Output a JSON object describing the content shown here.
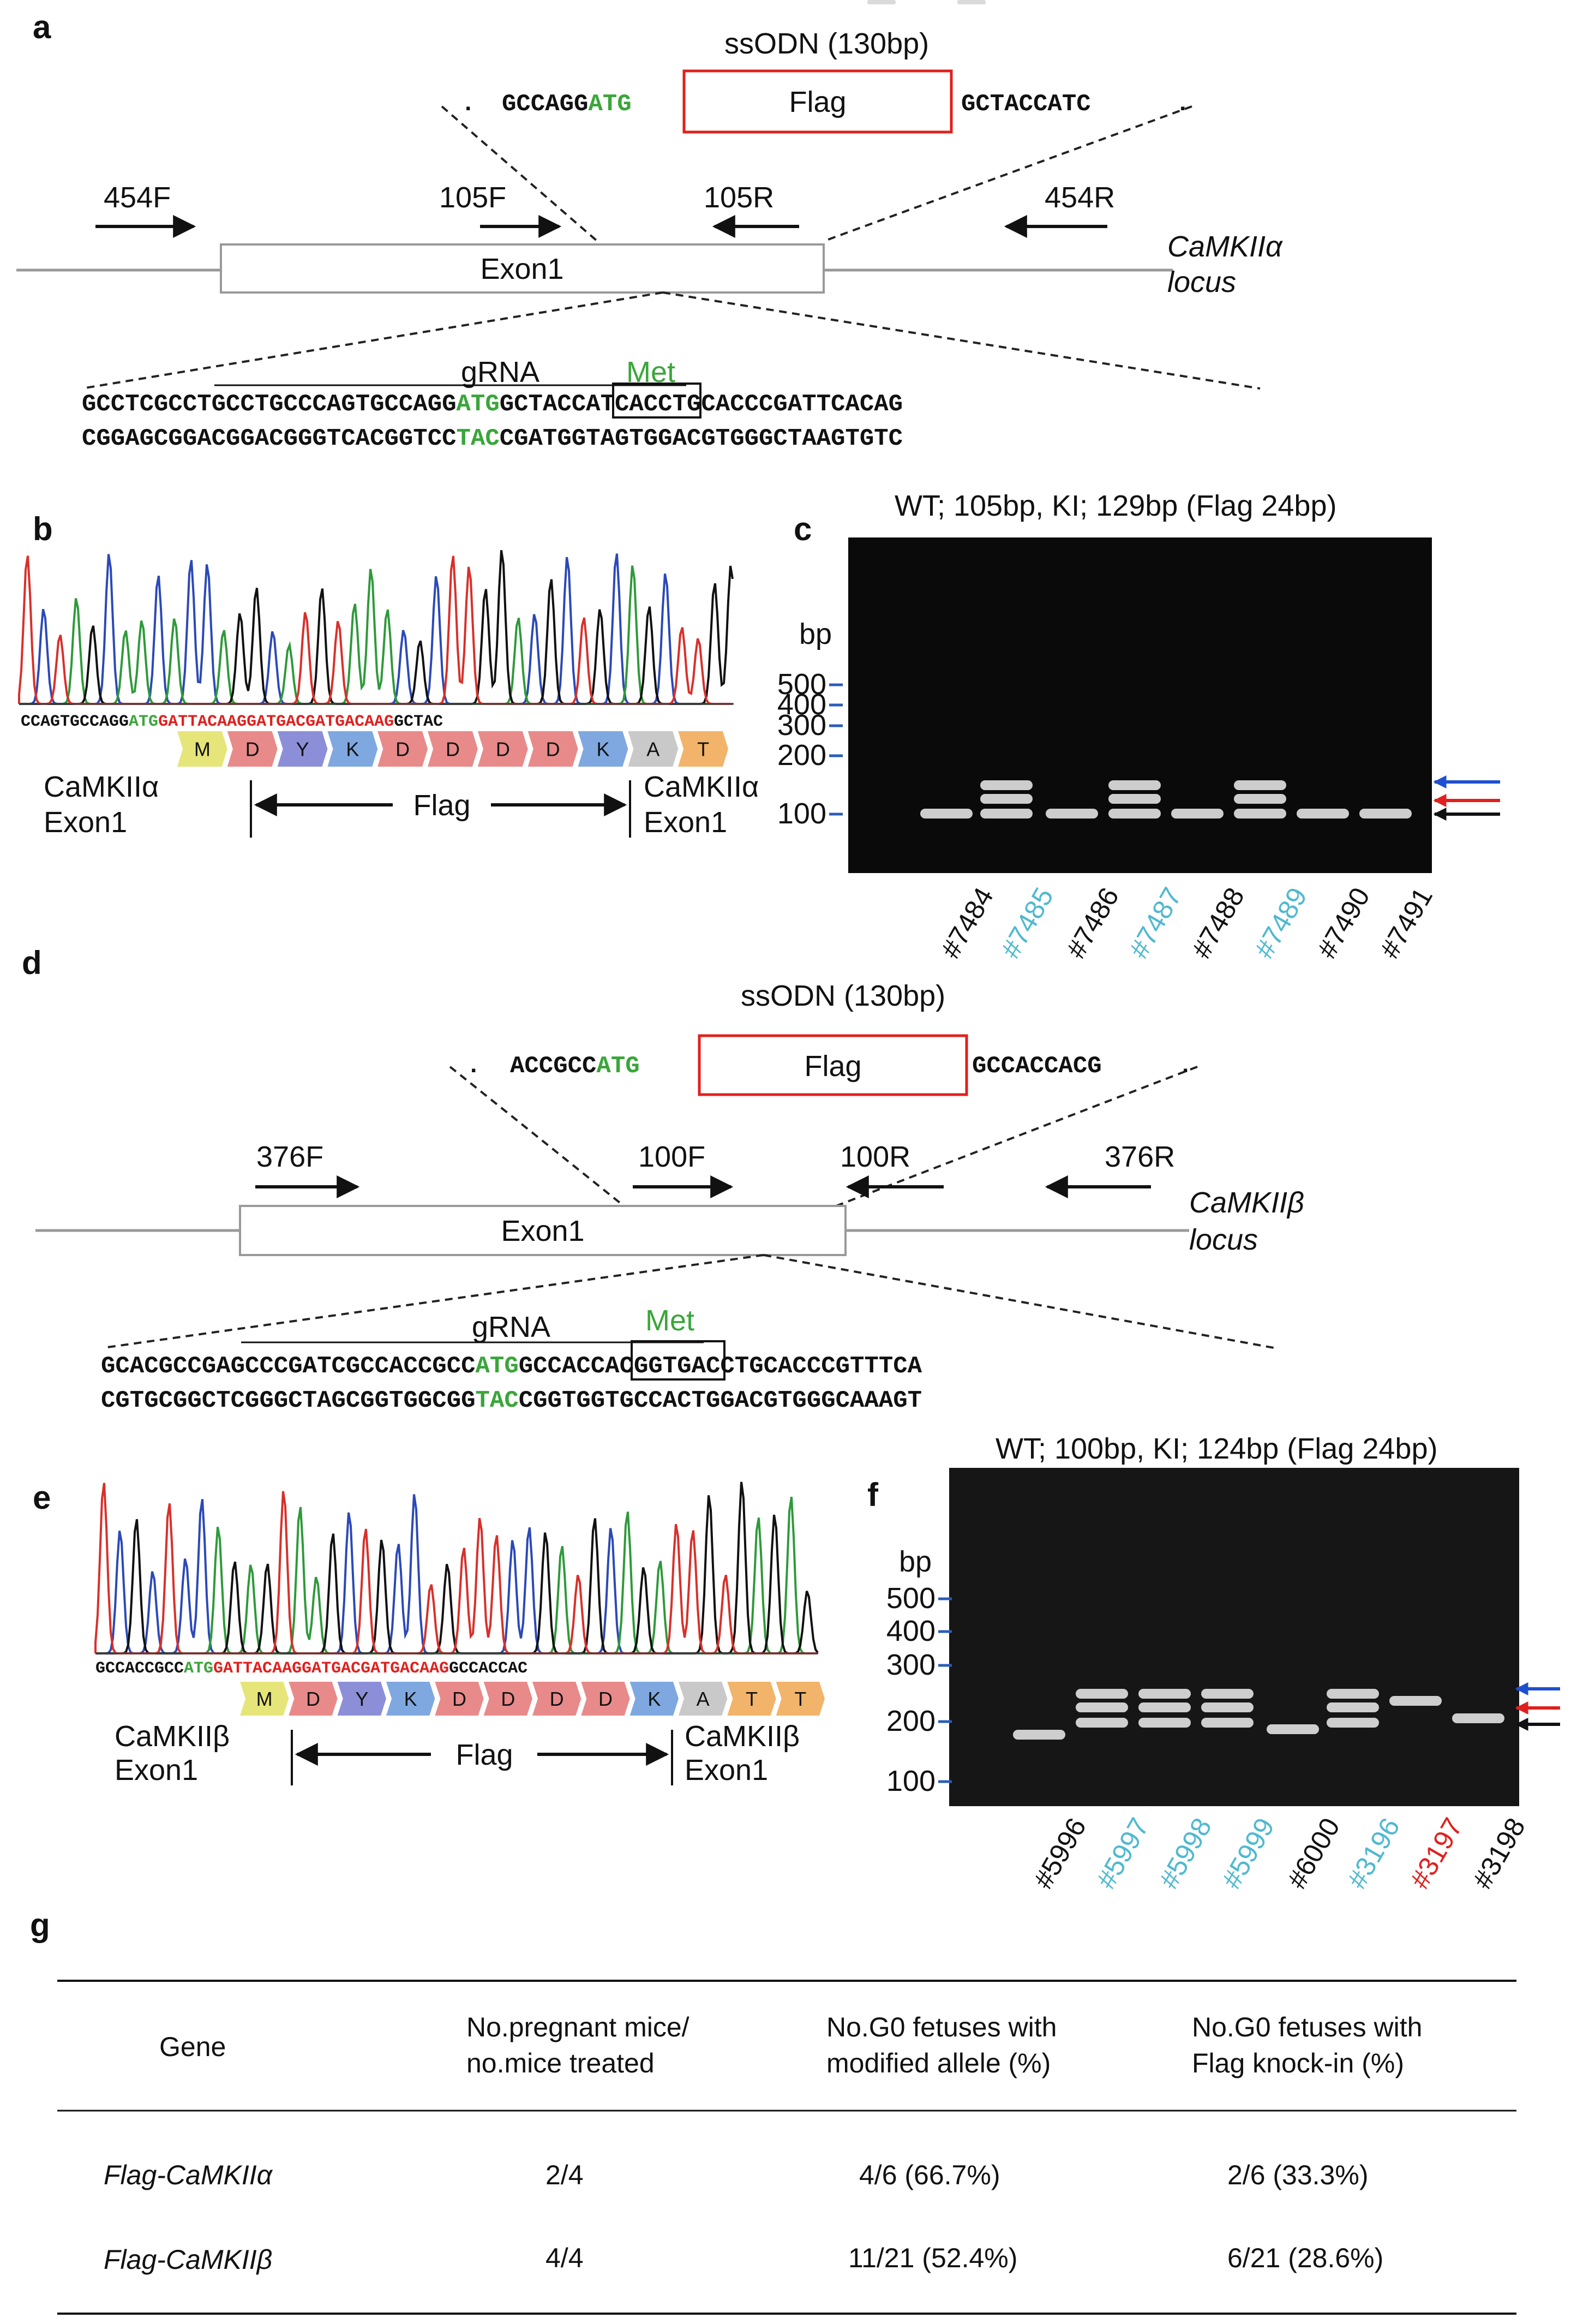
{
  "panels": {
    "a": {
      "letter": "a",
      "ssodn_title": "ssODN (130bp)",
      "ssodn_left": "GCCAGG",
      "ssodn_atg": "ATG",
      "flag_box": "Flag",
      "ssodn_right": "GCTACCATC",
      "primers": {
        "outer_f": "454F",
        "inner_f": "105F",
        "inner_r": "105R",
        "outer_r": "454R"
      },
      "exon_label": "Exon1",
      "locus_line1": "CaMKIIα",
      "locus_line2": "locus",
      "met_label": "Met",
      "grna_label": "gRNA",
      "seq_top_pre": "GCCTCGCCTGCCTGCCCAGTGCCAGG",
      "seq_top_atg": "ATG",
      "seq_top_post": "GCTACCATCACCTGCACCCGATTCACAG",
      "seq_bot_pre": "CGGAGCGGACGGACGGGTCACGGTCC",
      "seq_bot_tac": "TAC",
      "seq_bot_post": "CGATGGTAGTGGACGTGGGCTAAGTGTC"
    },
    "b": {
      "letter": "b",
      "seq_pre": "CCAGTGCCAGG",
      "seq_atg": "ATG",
      "seq_flag": "GATTACAAGGATGACGATGACAAG",
      "seq_post": "GCTAC",
      "aa": [
        "M",
        "D",
        "Y",
        "K",
        "D",
        "D",
        "D",
        "D",
        "K",
        "A",
        "T"
      ],
      "left_label_1": "CaMKIIα",
      "left_label_2": "Exon1",
      "flag_label": "Flag",
      "right_label_1": "CaMKIIα",
      "right_label_2": "Exon1"
    },
    "c": {
      "letter": "c",
      "title": "WT; 105bp, KI; 129bp (Flag 24bp)",
      "bp_label": "bp",
      "ladder": [
        "500",
        "400",
        "300",
        "200",
        "100"
      ],
      "lanes": [
        {
          "label": "#7484",
          "color": "#111111"
        },
        {
          "label": "#7485",
          "color": "#4fb9cf"
        },
        {
          "label": "#7486",
          "color": "#111111"
        },
        {
          "label": "#7487",
          "color": "#4fb9cf"
        },
        {
          "label": "#7488",
          "color": "#111111"
        },
        {
          "label": "#7489",
          "color": "#4fb9cf"
        },
        {
          "label": "#7490",
          "color": "#111111"
        },
        {
          "label": "#7491",
          "color": "#111111"
        }
      ]
    },
    "d": {
      "letter": "d",
      "ssodn_title": "ssODN (130bp)",
      "ssodn_left": "ACCGCC",
      "ssodn_atg": "ATG",
      "flag_box": "Flag",
      "ssodn_right": "GCCACCACG",
      "primers": {
        "outer_f": "376F",
        "inner_f": "100F",
        "inner_r": "100R",
        "outer_r": "376R"
      },
      "exon_label": "Exon1",
      "locus_line1": "CaMKIIβ",
      "locus_line2": "locus",
      "met_label": "Met",
      "grna_label": "gRNA",
      "seq_top_pre": "GCACGCCGAGCCCGATCGCCACCGCC",
      "seq_top_atg": "ATG",
      "seq_top_post": "GCCACCACGGTGACCTGCACCCGTTTCA",
      "seq_bot_pre": "CGTGCGGCTCGGGCTAGCGGTGGCGG",
      "seq_bot_tac": "TAC",
      "seq_bot_post": "CGGTGGTGCCACTGGACGTGGGCAAAGT"
    },
    "e": {
      "letter": "e",
      "seq_pre": "GCCACCGCC",
      "seq_atg": "ATG",
      "seq_flag": "GATTACAAGGATGACGATGACAAG",
      "seq_post": "GCCACCAC",
      "aa": [
        "M",
        "D",
        "Y",
        "K",
        "D",
        "D",
        "D",
        "D",
        "K",
        "A",
        "T",
        "T"
      ],
      "left_label_1": "CaMKIIβ",
      "left_label_2": "Exon1",
      "flag_label": "Flag",
      "right_label_1": "CaMKIIβ",
      "right_label_2": "Exon1"
    },
    "f": {
      "letter": "f",
      "title": "WT; 100bp, KI; 124bp (Flag 24bp)",
      "bp_label": "bp",
      "ladder": [
        "500",
        "400",
        "300",
        "200",
        "100"
      ],
      "lanes": [
        {
          "label": "#5996",
          "color": "#111111"
        },
        {
          "label": "#5997",
          "color": "#4fb9cf"
        },
        {
          "label": "#5998",
          "color": "#4fb9cf"
        },
        {
          "label": "#5999",
          "color": "#4fb9cf"
        },
        {
          "label": "#6000",
          "color": "#111111"
        },
        {
          "label": "#3196",
          "color": "#4fb9cf"
        },
        {
          "label": "#3197",
          "color": "#e0201e"
        },
        {
          "label": "#3198",
          "color": "#111111"
        }
      ]
    },
    "g": {
      "letter": "g",
      "headers": {
        "gene": "Gene",
        "col1_line1": "No.pregnant mice/",
        "col1_line2": "no.mice treated",
        "col2_line1": "No.G0 fetuses with",
        "col2_line2": "modified allele (%)",
        "col3_line1": "No.G0 fetuses with",
        "col3_line2": "Flag knock-in (%)"
      },
      "rows": [
        {
          "gene": "Flag-CaMKIIα",
          "pregnant": "2/4",
          "modified": "4/6 (66.7%)",
          "knockin": "2/6 (33.3%)"
        },
        {
          "gene": "Flag-CaMKIIβ",
          "pregnant": "4/4",
          "modified": "11/21 (52.4%)",
          "knockin": "6/21 (28.6%)"
        }
      ]
    }
  },
  "colors": {
    "atg_green": "#3aa63a",
    "flag_red": "#e0201e",
    "knockin_cyan": "#4fb9cf",
    "arrow_blue": "#1f4fd0",
    "arrow_red": "#e0201e",
    "arrow_black": "#111111",
    "aa_colors": {
      "M": "#e6e57a",
      "D": "#e88a8a",
      "Y": "#8c8fd8",
      "K": "#7fa8e0",
      "A": "#c9c9c9",
      "T": "#f2b46a"
    }
  }
}
